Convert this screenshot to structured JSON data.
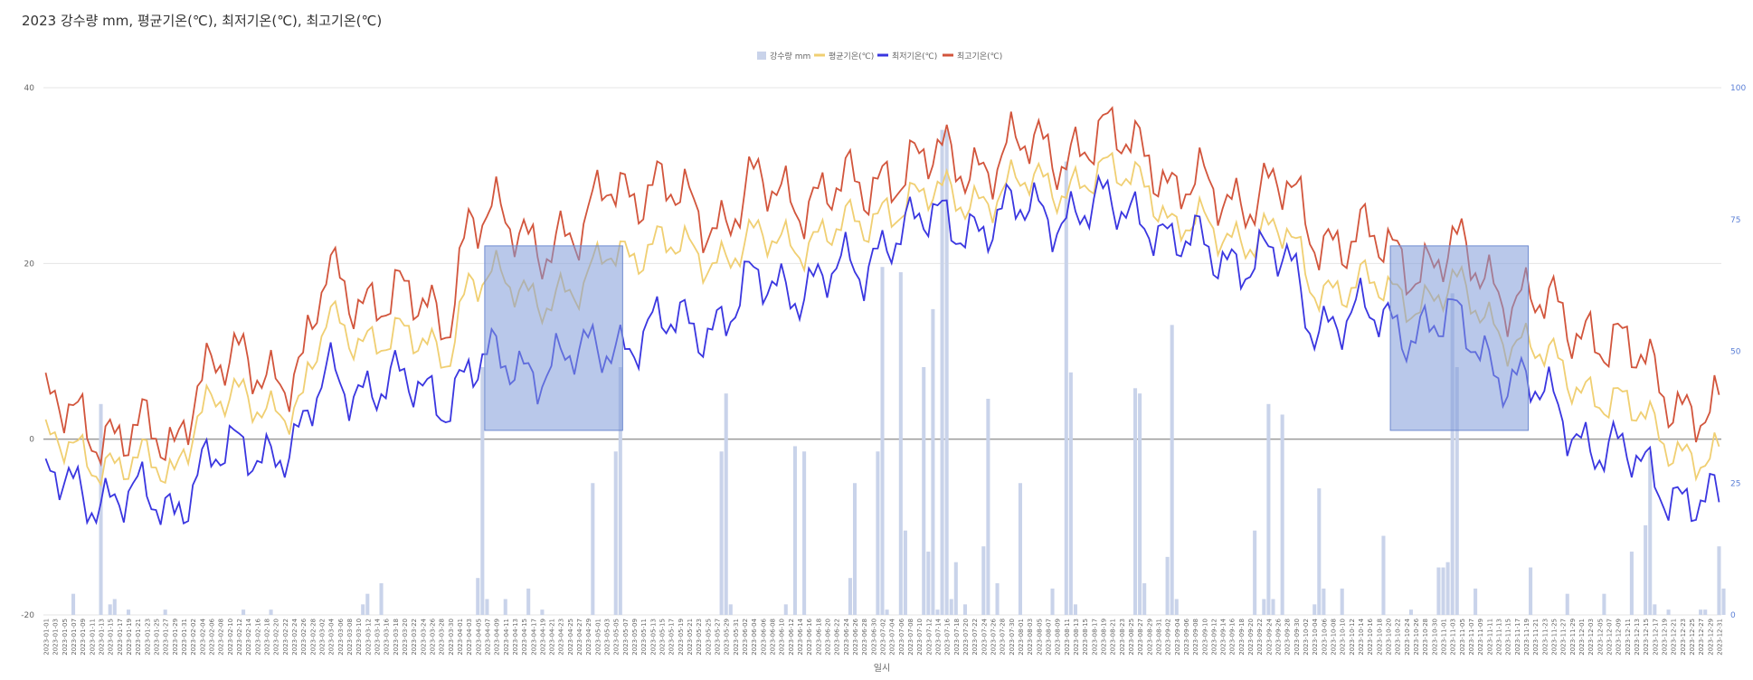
{
  "chart_title": "2023 강수량 mm, 평균기온(℃), 최저기온(℃), 최고기온(℃)",
  "colors": {
    "precip": "#c9d3ea",
    "avg": "#f0cf72",
    "min": "#3a36e0",
    "max": "#d2553c",
    "highlight": "#7f9ad8",
    "grid": "#e4e4e4",
    "zero_line": "#9a9a9a",
    "right_axis": "#5b7fd6"
  },
  "chart_data": {
    "type": "line",
    "title": "2023 강수량 mm, 평균기온(℃), 최저기온(℃), 최고기온(℃)",
    "xlabel": "일시",
    "x_start": "2023-01-01",
    "x_end": "2023-12-31",
    "x_tick_interval_days": 2,
    "left_axis": {
      "ylim": [
        -20,
        40
      ],
      "ticks": [
        "40",
        "20",
        "0",
        "-20"
      ]
    },
    "right_axis": {
      "ylim": [
        0,
        100
      ],
      "ticks": [
        "100",
        "75",
        "50",
        "25",
        "0"
      ]
    },
    "legend": {
      "position": "top-center",
      "entries": [
        "강수량 mm",
        "평균기온(℃)",
        "최저기온(℃)",
        "최고기온(℃)"
      ]
    },
    "monthly_anchors": {
      "months": [
        "2023-01",
        "2023-02",
        "2023-03",
        "2023-04",
        "2023-05",
        "2023-06",
        "2023-07",
        "2023-08",
        "2023-09",
        "2023-10",
        "2023-11",
        "2023-12"
      ],
      "max": [
        [
          3,
          -1
        ],
        [
          8,
          8
        ],
        [
          18,
          14
        ],
        [
          25,
          22
        ],
        [
          30,
          25
        ],
        [
          28,
          28
        ],
        [
          31,
          32
        ],
        [
          33,
          34
        ],
        [
          28,
          28
        ],
        [
          24,
          20
        ],
        [
          21,
          13
        ],
        [
          13,
          2
        ]
      ],
      "avg": [
        [
          -1,
          -4
        ],
        [
          4,
          4
        ],
        [
          13,
          10
        ],
        [
          18,
          16
        ],
        [
          22,
          21
        ],
        [
          22,
          24
        ],
        [
          27,
          28
        ],
        [
          29,
          30
        ],
        [
          24,
          23
        ],
        [
          18,
          16
        ],
        [
          17,
          7
        ],
        [
          6,
          -3
        ]
      ],
      "min": [
        [
          -5,
          -8
        ],
        [
          -3,
          0
        ],
        [
          7,
          5
        ],
        [
          8,
          9
        ],
        [
          11,
          14
        ],
        [
          17,
          19
        ],
        [
          24,
          25
        ],
        [
          26,
          26
        ],
        [
          22,
          20
        ],
        [
          14,
          13
        ],
        [
          13,
          2
        ],
        [
          0,
          -8
        ]
      ]
    },
    "series": [
      {
        "name": "최고기온(℃)",
        "axis": "left",
        "type": "line"
      },
      {
        "name": "평균기온(℃)",
        "axis": "left",
        "type": "line"
      },
      {
        "name": "최저기온(℃)",
        "axis": "left",
        "type": "line"
      },
      {
        "name": "강수량 mm",
        "axis": "right",
        "type": "bar",
        "points": [
          [
            "2023-01-07",
            4
          ],
          [
            "2023-01-13",
            40
          ],
          [
            "2023-01-15",
            2
          ],
          [
            "2023-01-16",
            3
          ],
          [
            "2023-01-19",
            1
          ],
          [
            "2023-01-27",
            1
          ],
          [
            "2023-02-13",
            1
          ],
          [
            "2023-02-19",
            1
          ],
          [
            "2023-03-11",
            2
          ],
          [
            "2023-03-12",
            4
          ],
          [
            "2023-03-15",
            6
          ],
          [
            "2023-04-05",
            7
          ],
          [
            "2023-04-06",
            47
          ],
          [
            "2023-04-07",
            3
          ],
          [
            "2023-04-11",
            3
          ],
          [
            "2023-04-16",
            5
          ],
          [
            "2023-04-19",
            1
          ],
          [
            "2023-04-30",
            25
          ],
          [
            "2023-05-05",
            31
          ],
          [
            "2023-05-06",
            47
          ],
          [
            "2023-05-28",
            31
          ],
          [
            "2023-05-29",
            42
          ],
          [
            "2023-05-30",
            2
          ],
          [
            "2023-06-11",
            2
          ],
          [
            "2023-06-13",
            32
          ],
          [
            "2023-06-15",
            31
          ],
          [
            "2023-06-25",
            7
          ],
          [
            "2023-06-26",
            25
          ],
          [
            "2023-07-01",
            31
          ],
          [
            "2023-07-02",
            66
          ],
          [
            "2023-07-03",
            1
          ],
          [
            "2023-07-06",
            65
          ],
          [
            "2023-07-07",
            16
          ],
          [
            "2023-07-11",
            47
          ],
          [
            "2023-07-12",
            12
          ],
          [
            "2023-07-13",
            58
          ],
          [
            "2023-07-14",
            1
          ],
          [
            "2023-07-15",
            92
          ],
          [
            "2023-07-16",
            92
          ],
          [
            "2023-07-17",
            3
          ],
          [
            "2023-07-18",
            10
          ],
          [
            "2023-07-20",
            2
          ],
          [
            "2023-07-24",
            13
          ],
          [
            "2023-07-25",
            41
          ],
          [
            "2023-07-27",
            6
          ],
          [
            "2023-08-01",
            25
          ],
          [
            "2023-08-08",
            5
          ],
          [
            "2023-08-11",
            86
          ],
          [
            "2023-08-12",
            46
          ],
          [
            "2023-08-13",
            2
          ],
          [
            "2023-08-26",
            43
          ],
          [
            "2023-08-27",
            42
          ],
          [
            "2023-08-28",
            6
          ],
          [
            "2023-09-02",
            11
          ],
          [
            "2023-09-03",
            55
          ],
          [
            "2023-09-04",
            3
          ],
          [
            "2023-09-21",
            16
          ],
          [
            "2023-09-23",
            3
          ],
          [
            "2023-09-24",
            40
          ],
          [
            "2023-09-25",
            3
          ],
          [
            "2023-09-27",
            38
          ],
          [
            "2023-10-04",
            2
          ],
          [
            "2023-10-05",
            24
          ],
          [
            "2023-10-06",
            5
          ],
          [
            "2023-10-10",
            5
          ],
          [
            "2023-10-19",
            15
          ],
          [
            "2023-10-25",
            1
          ],
          [
            "2023-10-31",
            9
          ],
          [
            "2023-11-01",
            9
          ],
          [
            "2023-11-02",
            10
          ],
          [
            "2023-11-03",
            61
          ],
          [
            "2023-11-04",
            47
          ],
          [
            "2023-11-08",
            5
          ],
          [
            "2023-11-20",
            9
          ],
          [
            "2023-11-28",
            4
          ],
          [
            "2023-12-06",
            4
          ],
          [
            "2023-12-12",
            12
          ],
          [
            "2023-12-15",
            17
          ],
          [
            "2023-12-16",
            31
          ],
          [
            "2023-12-17",
            2
          ],
          [
            "2023-12-20",
            1
          ],
          [
            "2023-12-27",
            1
          ],
          [
            "2023-12-28",
            1
          ],
          [
            "2023-12-31",
            13
          ],
          [
            "2024-01-01",
            5
          ]
        ]
      }
    ],
    "highlight_boxes": [
      {
        "x": [
          "2023-04-07",
          "2023-05-07"
        ],
        "y": [
          1,
          22
        ]
      },
      {
        "x": [
          "2023-10-21",
          "2023-11-20"
        ],
        "y": [
          1,
          22
        ]
      }
    ],
    "grid": true
  }
}
